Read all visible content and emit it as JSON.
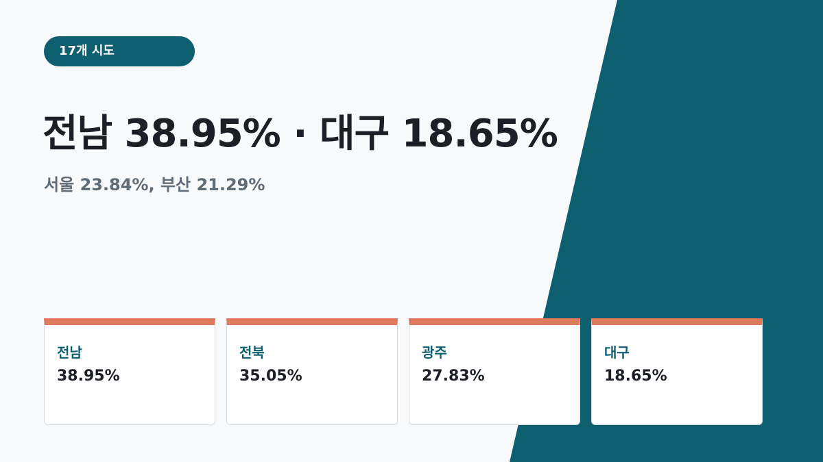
{
  "badge": "17개 시도",
  "headline": "전남 38.95% · 대구 18.65%",
  "subheadline": "서울 23.84%, 부산 21.29%",
  "cards": [
    {
      "label": "전남",
      "value": "38.95%"
    },
    {
      "label": "전북",
      "value": "35.05%"
    },
    {
      "label": "광주",
      "value": "27.83%"
    },
    {
      "label": "대구",
      "value": "18.65%"
    }
  ]
}
